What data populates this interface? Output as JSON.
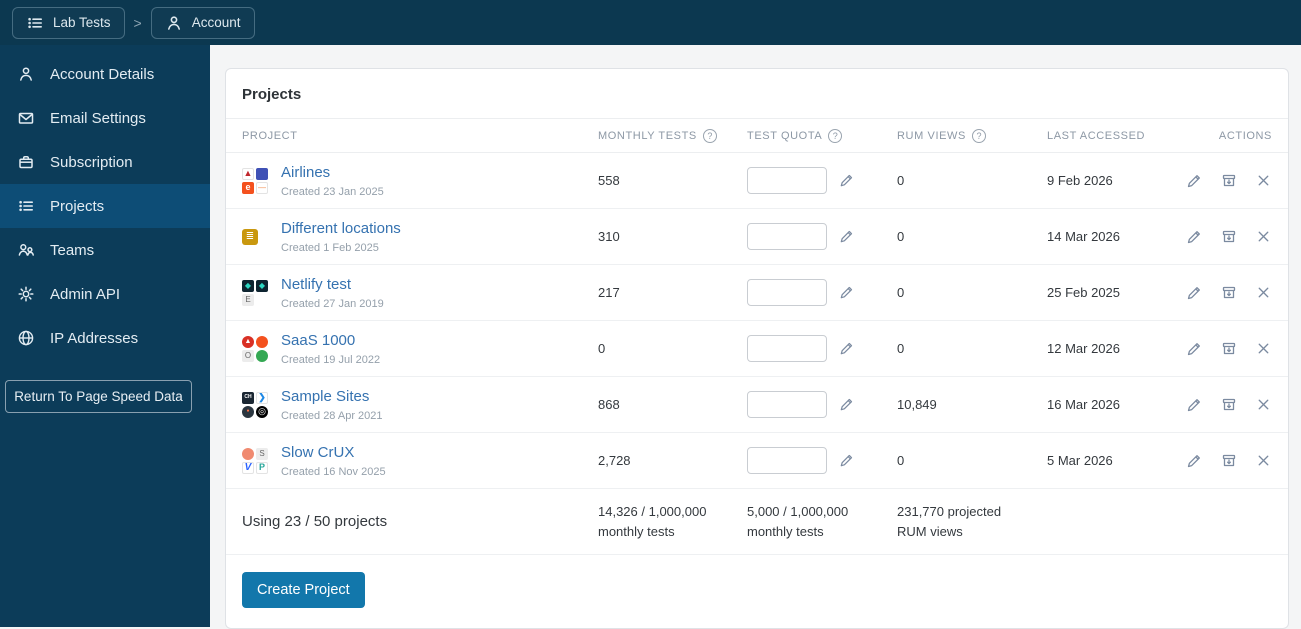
{
  "topbar": {
    "items": [
      {
        "label": "Lab Tests",
        "icon": "list-icon"
      },
      {
        "label": "Account",
        "icon": "person-icon"
      }
    ],
    "separator": ">"
  },
  "sidebar": {
    "items": [
      {
        "label": "Account Details",
        "icon": "person-icon",
        "active": false
      },
      {
        "label": "Email Settings",
        "icon": "envelope-icon",
        "active": false
      },
      {
        "label": "Subscription",
        "icon": "briefcase-icon",
        "active": false
      },
      {
        "label": "Projects",
        "icon": "list-icon",
        "active": true
      },
      {
        "label": "Teams",
        "icon": "people-icon",
        "active": false
      },
      {
        "label": "Admin API",
        "icon": "gear-icon",
        "active": false
      },
      {
        "label": "IP Addresses",
        "icon": "globe-icon",
        "active": false
      }
    ],
    "return_button_label": "Return To Page Speed Data"
  },
  "main": {
    "card_title": "Projects",
    "table": {
      "headers": {
        "project": "Project",
        "monthly_tests": "Monthly Tests",
        "test_quota": "Test Quota",
        "rum_views": "RUM Views",
        "last_accessed": "Last Accessed",
        "actions": "Actions",
        "help_glyph": "?"
      },
      "rows": [
        {
          "name": "Airlines",
          "created": "Created 23 Jan 2025",
          "monthly_tests": "558",
          "test_quota_value": "",
          "rum_views": "0",
          "last_accessed": "9 Feb 2026",
          "favicons": [
            {
              "shape": "square",
              "bg": "#ffffff",
              "ch": "▲",
              "fg": "#c0272d",
              "fs": 9,
              "bd": true
            },
            {
              "shape": "square",
              "bg": "#3f51b5",
              "ch": "",
              "fg": "#8c9eff"
            },
            {
              "shape": "square",
              "bg": "#f4511e",
              "ch": "e",
              "fg": "#ffffff",
              "fs": 9,
              "bold": true
            },
            {
              "shape": "square",
              "bg": "#ffffff",
              "ch": "—",
              "fg": "#f08a4b",
              "fs": 8,
              "bd": true
            }
          ]
        },
        {
          "name": "Different locations",
          "created": "Created 1 Feb 2025",
          "monthly_tests": "310",
          "test_quota_value": "",
          "rum_views": "0",
          "last_accessed": "14 Mar 2026",
          "favicons": [
            {
              "shape": "square",
              "bg": "#c9980f",
              "ch": "≣",
              "fg": "#ffffff",
              "fs": 10
            }
          ]
        },
        {
          "name": "Netlify test",
          "created": "Created 27 Jan 2019",
          "monthly_tests": "217",
          "test_quota_value": "",
          "rum_views": "0",
          "last_accessed": "25 Feb 2025",
          "favicons": [
            {
              "shape": "square",
              "bg": "#0e2430",
              "ch": "◆",
              "fg": "#2dd6c1",
              "fs": 8
            },
            {
              "shape": "square",
              "bg": "#0e2430",
              "ch": "◆",
              "fg": "#2dd6c1",
              "fs": 8
            },
            {
              "shape": "square",
              "bg": "#ececec",
              "ch": "E",
              "fg": "#666666",
              "fs": 8
            }
          ]
        },
        {
          "name": "SaaS 1000",
          "created": "Created 19 Jul 2022",
          "monthly_tests": "0",
          "test_quota_value": "",
          "rum_views": "0",
          "last_accessed": "12 Mar 2026",
          "favicons": [
            {
              "shape": "circle",
              "bg": "#d93025",
              "ch": "▲",
              "fg": "#ffffff",
              "fs": 7
            },
            {
              "shape": "circle",
              "bg": "#f4511e",
              "ch": "",
              "fg": "#ffffff"
            },
            {
              "shape": "square",
              "bg": "#ececec",
              "ch": "O",
              "fg": "#666666",
              "fs": 8
            },
            {
              "shape": "circle",
              "bg": "#34a853",
              "ch": "",
              "fg": "#ffffff"
            }
          ]
        },
        {
          "name": "Sample Sites",
          "created": "Created 28 Apr 2021",
          "monthly_tests": "868",
          "test_quota_value": "",
          "rum_views": "10,849",
          "last_accessed": "16 Mar 2026",
          "favicons": [
            {
              "shape": "square",
              "bg": "#1b2733",
              "ch": "CH",
              "fg": "#ffffff",
              "fs": 5,
              "bold": true
            },
            {
              "shape": "square",
              "bg": "#ffffff",
              "ch": "❯",
              "fg": "#1e88e5",
              "fs": 9,
              "bold": true,
              "bd": true
            },
            {
              "shape": "circle",
              "bg": "#2b3640",
              "ch": "●",
              "fg": "#ff7043",
              "fs": 5
            },
            {
              "shape": "circle",
              "bg": "#000000",
              "ch": "◎",
              "fg": "#ffffff",
              "fs": 9
            }
          ]
        },
        {
          "name": "Slow CrUX",
          "created": "Created 16 Nov 2025",
          "monthly_tests": "2,728",
          "test_quota_value": "",
          "rum_views": "0",
          "last_accessed": "5 Mar 2026",
          "favicons": [
            {
              "shape": "circle",
              "bg": "#f08a70",
              "ch": "",
              "fg": "#ffffff"
            },
            {
              "shape": "square",
              "bg": "#ececec",
              "ch": "S",
              "fg": "#666666",
              "fs": 8
            },
            {
              "shape": "square",
              "bg": "#ffffff",
              "ch": "V",
              "fg": "#2962ff",
              "fs": 10,
              "bold": true,
              "italic": true,
              "bd": true
            },
            {
              "shape": "square",
              "bg": "#ffffff",
              "ch": "P",
              "fg": "#26a69a",
              "fs": 9,
              "bold": true,
              "bd": true
            }
          ]
        }
      ],
      "summary": {
        "projects": "Using 23 / 50 projects",
        "monthly_tests": "14,326 / 1,000,000 monthly tests",
        "test_quota": "5,000 / 1,000,000 monthly tests",
        "rum_views": "231,770 projected RUM views"
      }
    },
    "create_button_label": "Create Project"
  },
  "colors": {
    "topbar_bg": "#0c3850",
    "sidebar_bg": "#0c3c59",
    "sidebar_active_bg": "#0d4d76",
    "accent_blue": "#1277ab",
    "link_blue": "#3572b0",
    "main_bg": "#f4f5f6",
    "icon_gray": "#7b8aa0"
  }
}
